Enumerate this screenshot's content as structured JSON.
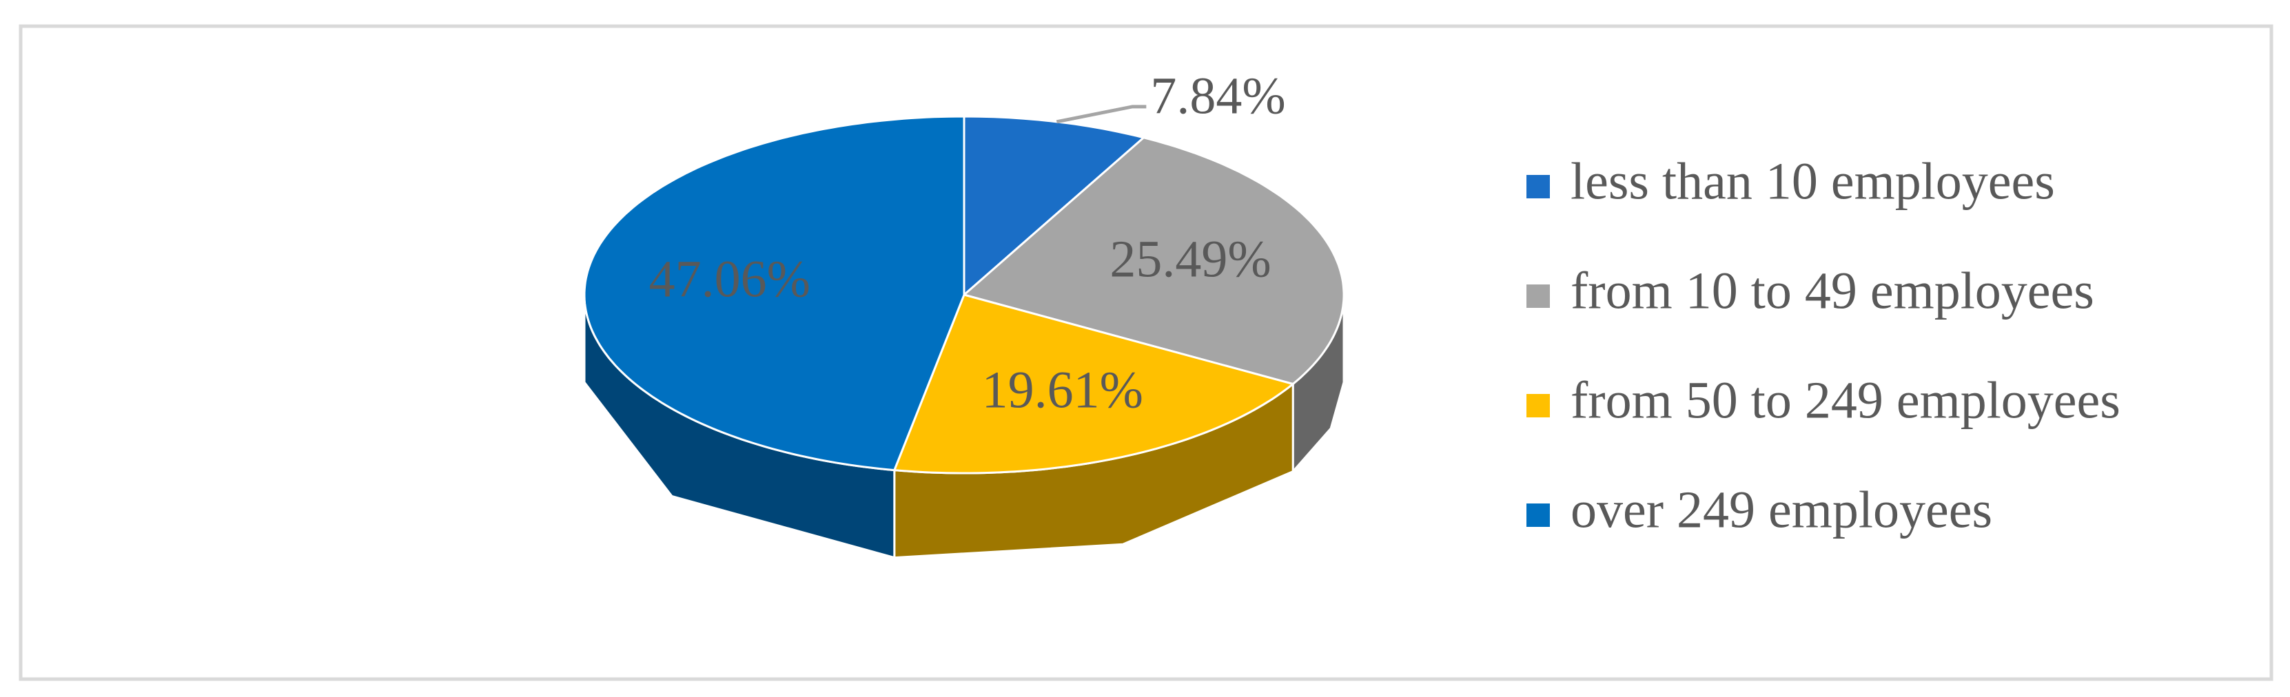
{
  "chart_data": {
    "type": "pie",
    "view": "3d",
    "categories": [
      "less than 10 employees",
      "from 10 to 49 employees",
      "from 50 to 249 employees",
      "over 249 employees"
    ],
    "values": [
      7.84,
      25.49,
      19.61,
      47.06
    ],
    "value_labels": [
      "7.84%",
      "25.49%",
      "19.61%",
      "47.06%"
    ],
    "colors": [
      "#1a6ec6",
      "#a5a5a5",
      "#ffc000",
      "#0070c0"
    ],
    "legend": "right"
  }
}
